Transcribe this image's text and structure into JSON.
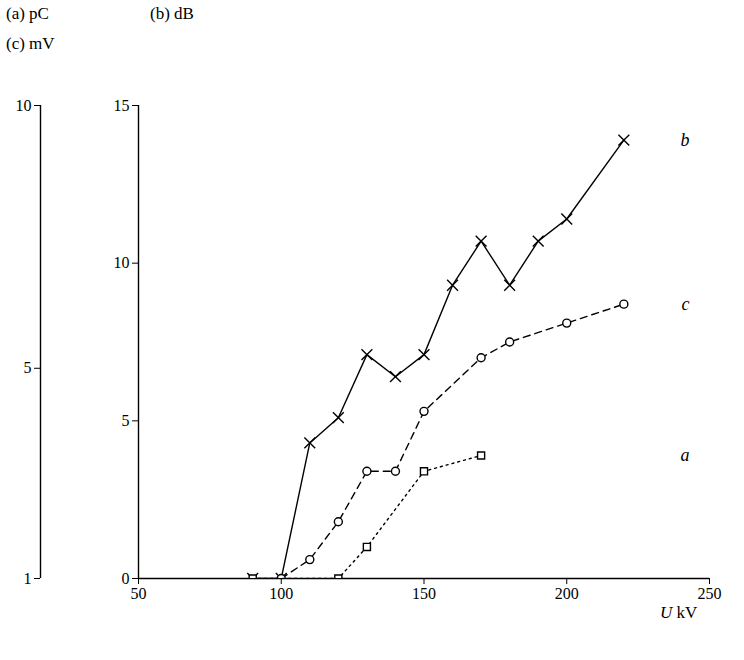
{
  "chart_data": {
    "type": "line",
    "xlabel": "U kV",
    "ylabel": "(b) dB",
    "y2label": [
      "(a) pC",
      "(c) mV"
    ],
    "xlim": [
      50,
      250
    ],
    "xticks": [
      50,
      100,
      150,
      200,
      250
    ],
    "ylim": [
      0,
      15
    ],
    "yticks": [
      0,
      5,
      10,
      15
    ],
    "y2lim": [
      1,
      10
    ],
    "y2ticks": [
      1,
      5,
      10
    ],
    "grid": false,
    "series": [
      {
        "name": "b",
        "color": "#000000",
        "marker": "x",
        "line_style": "solid",
        "x": [
          90,
          100,
          110,
          120,
          130,
          140,
          150,
          160,
          170,
          180,
          190,
          200,
          220
        ],
        "values": [
          0,
          0,
          4.3,
          5.1,
          7.1,
          6.4,
          7.1,
          9.3,
          10.7,
          9.3,
          10.7,
          11.4,
          13.9
        ]
      },
      {
        "name": "c",
        "color": "#000000",
        "marker": "circle",
        "line_style": "dashed",
        "axis": "y2",
        "x": [
          100,
          110,
          120,
          130,
          140,
          150,
          170,
          180,
          200,
          220
        ],
        "values": [
          1,
          1.36,
          2.08,
          3.04,
          3.04,
          4.18,
          5.2,
          5.5,
          5.86,
          6.22
        ]
      },
      {
        "name": "a",
        "color": "#000000",
        "marker": "square",
        "line_style": "dotted",
        "axis": "y2",
        "x": [
          90,
          120,
          130,
          150,
          170
        ],
        "values": [
          1,
          1,
          1.6,
          3.04,
          3.34
        ]
      }
    ]
  }
}
